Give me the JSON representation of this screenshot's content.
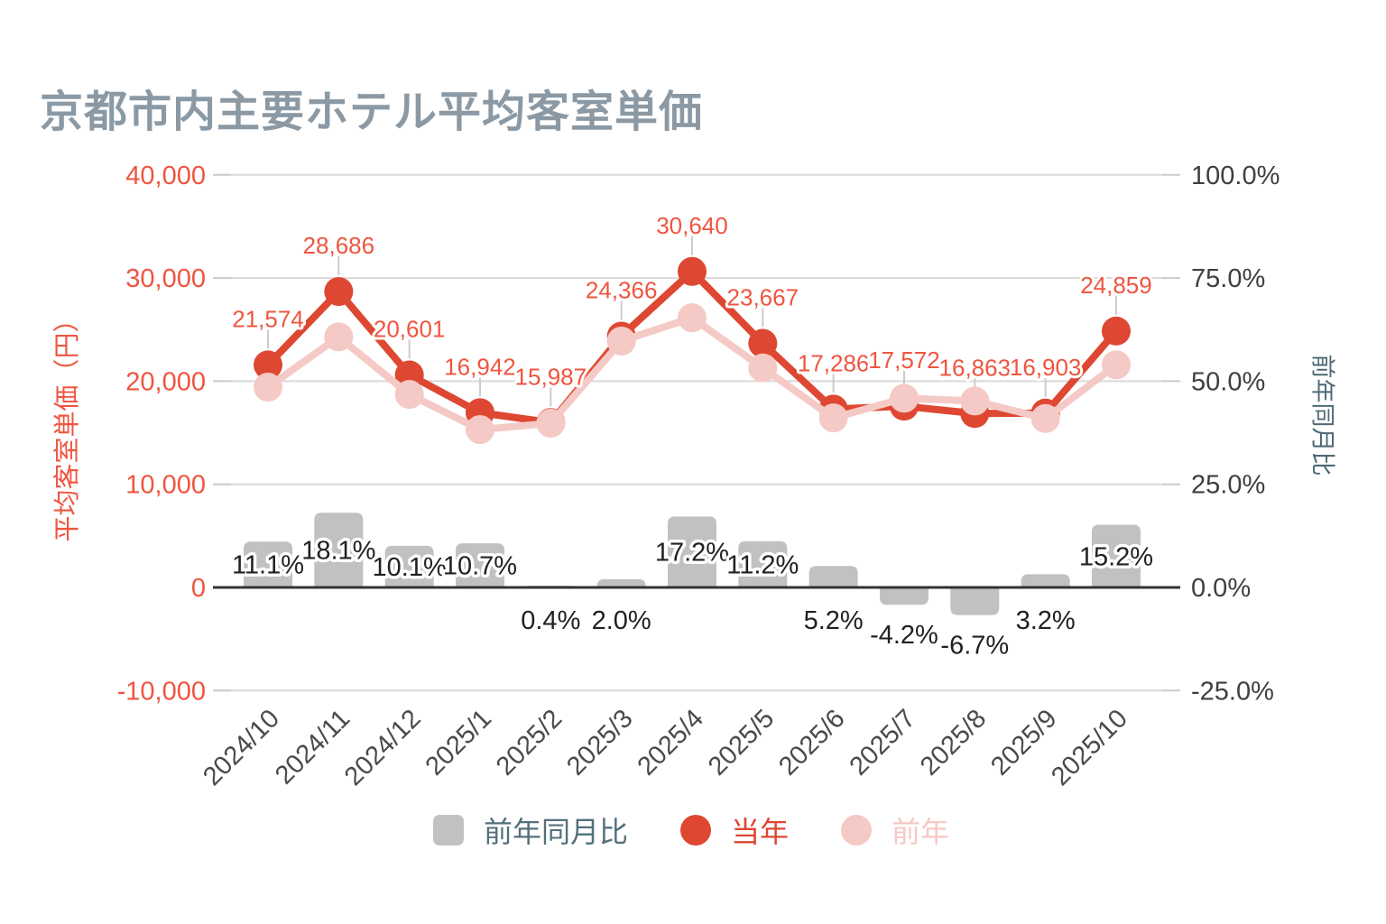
{
  "title": "京都市内主要ホテル平均客室単価",
  "colors": {
    "title": "#8b99a4",
    "current_year": "#de4731",
    "current_year_label": "#ef5540",
    "previous_year": "#f5c9c5",
    "bar": "#c1c1c1",
    "bar_label": "#212121",
    "right_tick": "#3f3f3f",
    "x_tick": "#4a4a4a",
    "gridline": "#d9d9d9",
    "zero_axis": "#333333",
    "legend_bar_text": "#53707c"
  },
  "chart_data": {
    "type": "combo",
    "categories": [
      "2024/10",
      "2024/11",
      "2024/12",
      "2025/1",
      "2025/2",
      "2025/3",
      "2025/4",
      "2025/5",
      "2025/6",
      "2025/7",
      "2025/8",
      "2025/9",
      "2025/10"
    ],
    "series": [
      {
        "name": "前年同月比",
        "type": "bar",
        "axis": "right",
        "color": "#c1c1c1",
        "values": [
          11.1,
          18.1,
          10.1,
          10.7,
          0.4,
          2.0,
          17.2,
          11.2,
          5.2,
          -4.2,
          -6.7,
          3.2,
          15.2
        ],
        "labels": [
          "11.1%",
          "18.1%",
          "10.1%",
          "10.7%",
          "0.4%",
          "2.0%",
          "17.2%",
          "11.2%",
          "5.2%",
          "-4.2%",
          "-6.7%",
          "3.2%",
          "15.2%"
        ]
      },
      {
        "name": "当年",
        "type": "line",
        "axis": "left",
        "color": "#de4731",
        "values": [
          21574,
          28686,
          20601,
          16942,
          15987,
          24366,
          30640,
          23667,
          17286,
          17572,
          16863,
          16903,
          24859
        ],
        "labels": [
          "21,574",
          "28,686",
          "20,601",
          "16,942",
          "15,987",
          "24,366",
          "30,640",
          "23,667",
          "17,286",
          "17,572",
          "16,863",
          "16,903",
          "24,859"
        ]
      },
      {
        "name": "前年",
        "type": "line",
        "axis": "left",
        "color": "#f5c9c5",
        "values": [
          19418,
          24290,
          18711,
          15305,
          15923,
          23888,
          26143,
          21283,
          16432,
          18342,
          18074,
          16379,
          21579
        ],
        "labels": []
      }
    ],
    "left_axis": {
      "title": "平均客室単価（円）",
      "ticks": [
        "40,000",
        "30,000",
        "20,000",
        "10,000",
        "0",
        "-10,000"
      ],
      "tick_values": [
        40000,
        30000,
        20000,
        10000,
        0,
        -10000
      ],
      "range": [
        -10000,
        40000
      ],
      "grid": true
    },
    "right_axis": {
      "title": "前年同月比",
      "ticks": [
        "100.0%",
        "75.0%",
        "50.0%",
        "25.0%",
        "0.0%",
        "-25.0%"
      ],
      "tick_values": [
        100,
        75,
        50,
        25,
        0,
        -25
      ],
      "range": [
        -25,
        100
      ]
    },
    "legend": [
      {
        "label": "前年同月比",
        "shape": "square",
        "color": "#c1c1c1",
        "text_color": "#53707c"
      },
      {
        "label": "当年",
        "shape": "circle",
        "color": "#de4731",
        "text_color": "#de4731"
      },
      {
        "label": "前年",
        "shape": "circle",
        "color": "#f5c9c5",
        "text_color": "#f5c9c5"
      }
    ],
    "legend_position": "bottom"
  }
}
